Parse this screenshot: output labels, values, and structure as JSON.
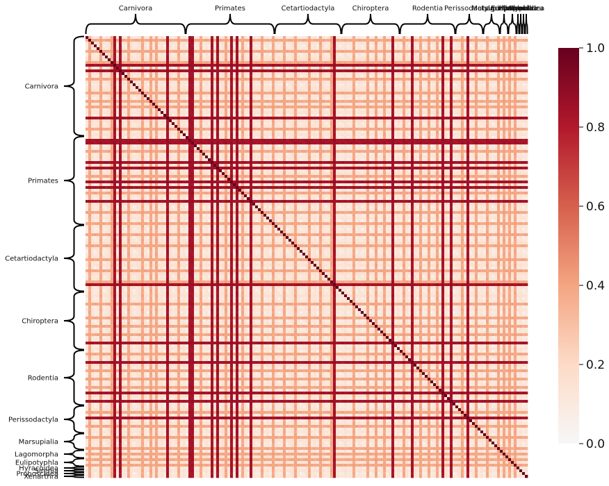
{
  "chart_data": {
    "type": "heatmap",
    "title": "",
    "xlabel": "",
    "ylabel": "",
    "groups": [
      {
        "name": "Carnivora",
        "size": 36
      },
      {
        "name": "Primates",
        "size": 32
      },
      {
        "name": "Cetartiodactyla",
        "size": 24
      },
      {
        "name": "Chiroptera",
        "size": 21
      },
      {
        "name": "Rodentia",
        "size": 20
      },
      {
        "name": "Perissodactyla",
        "size": 10
      },
      {
        "name": "Marsupialia",
        "size": 6
      },
      {
        "name": "Lagomorpha",
        "size": 3
      },
      {
        "name": "Eulipotyphla",
        "size": 3
      },
      {
        "name": "Hyracoidea",
        "size": 1
      },
      {
        "name": "Sirenia",
        "size": 1
      },
      {
        "name": "Proboscidea",
        "size": 1
      },
      {
        "name": "Xenarthra",
        "size": 1
      }
    ],
    "strong_indices": [
      10,
      12,
      29,
      37,
      38,
      45,
      47,
      52,
      54,
      59,
      89,
      110,
      117,
      128,
      131,
      137
    ],
    "medium_indices": [
      1,
      5,
      9,
      15,
      20,
      23,
      25,
      33,
      41,
      50,
      56,
      63,
      67,
      71,
      75,
      80,
      84,
      88,
      96,
      101,
      104,
      107,
      114,
      120,
      123,
      126,
      135,
      140,
      144,
      148,
      150,
      152,
      154
    ],
    "colorbar": {
      "range": [
        0.0,
        1.0
      ],
      "ticks": [
        "0.0",
        "0.2",
        "0.4",
        "0.6",
        "0.8",
        "1.0"
      ],
      "tick_values": [
        0.0,
        0.2,
        0.4,
        0.6,
        0.8,
        1.0
      ],
      "colormap": "Reds (white to dark red)",
      "colors": [
        "#f7f7f7",
        "#fddbc7",
        "#f4a582",
        "#d6604d",
        "#b2182b",
        "#67001f"
      ]
    },
    "diagonal_value": 1.0,
    "background_range": [
      0.0,
      0.15
    ]
  }
}
